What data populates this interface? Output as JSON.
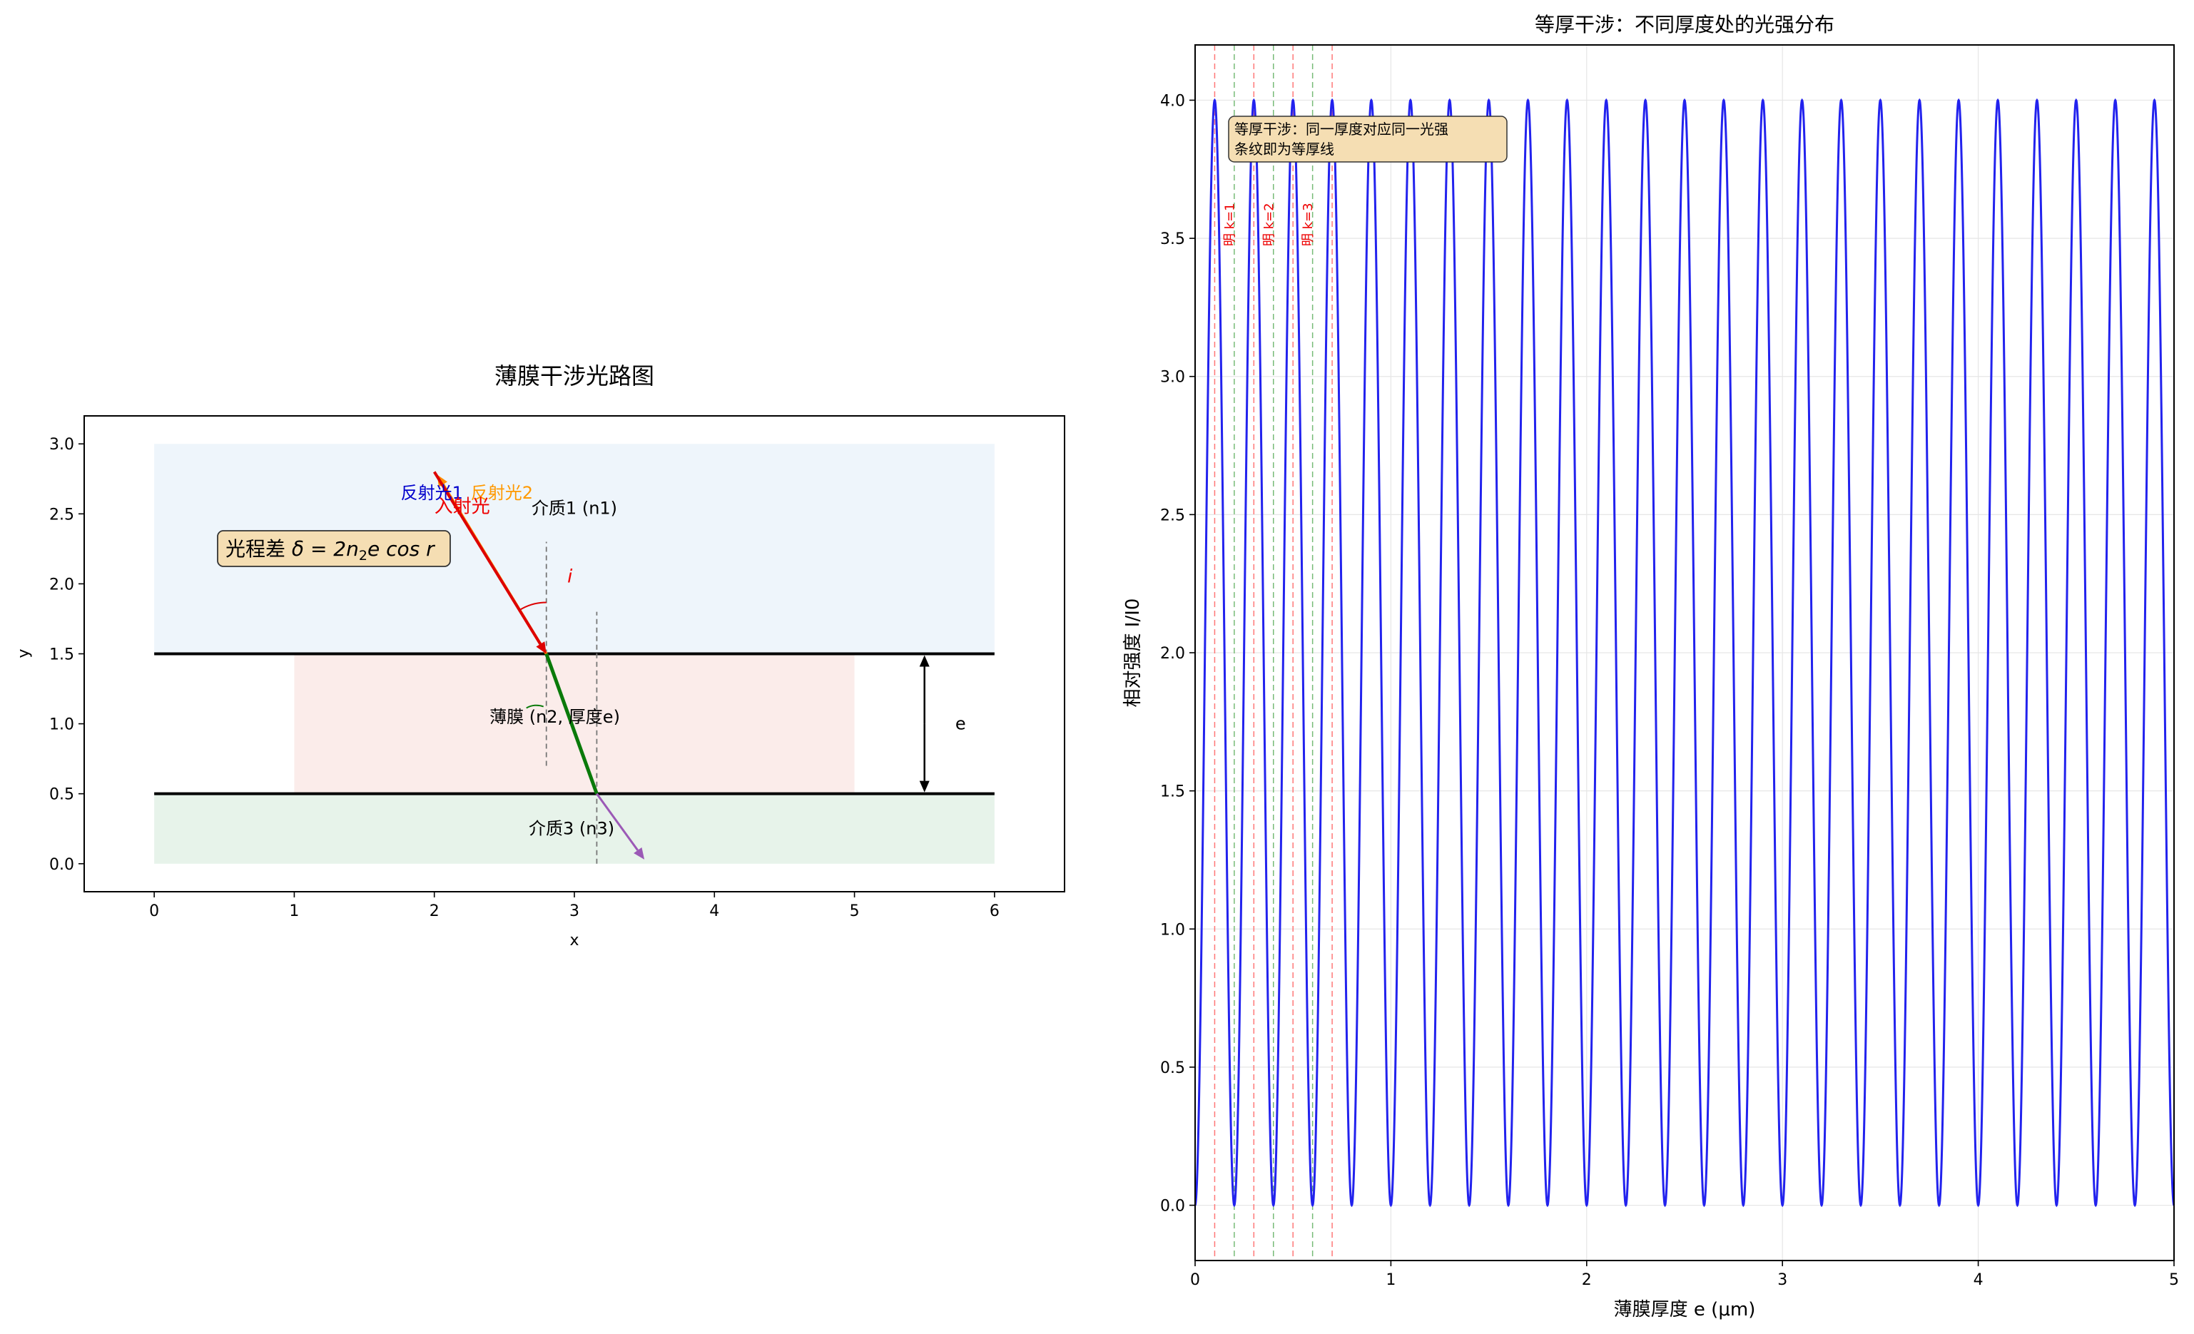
{
  "chart_data": [
    {
      "type": "diagram",
      "title": "薄膜干涉光路图",
      "xlabel": "x",
      "ylabel": "y",
      "xlim": [
        -0.5,
        6.5
      ],
      "ylim": [
        -0.2,
        3.2
      ],
      "xticks": [
        0,
        1,
        2,
        3,
        4,
        5,
        6
      ],
      "yticks": [
        0.0,
        0.5,
        1.0,
        1.5,
        2.0,
        2.5,
        3.0
      ],
      "grid": false,
      "regions": [
        {
          "name": "medium1",
          "x": [
            0,
            6
          ],
          "y": [
            1.5,
            3.0
          ],
          "color": "#eef5fb"
        },
        {
          "name": "film",
          "x": [
            1,
            5
          ],
          "y": [
            0.5,
            1.5
          ],
          "color": "#fbecea"
        },
        {
          "name": "medium3",
          "x": [
            0,
            6
          ],
          "y": [
            0.0,
            0.5
          ],
          "color": "#e7f3ea"
        }
      ],
      "interfaces": [
        1.5,
        0.5
      ],
      "rays": [
        {
          "name": "incident",
          "from": [
            2.0,
            2.8
          ],
          "to": [
            2.8,
            1.5
          ],
          "color": "#dd0000"
        },
        {
          "name": "reflected1",
          "from": [
            2.8,
            1.5
          ],
          "to": [
            2.02,
            2.78
          ],
          "color": "#ff8c00"
        },
        {
          "name": "film_path",
          "from": [
            2.8,
            1.5
          ],
          "to": [
            3.16,
            0.5
          ],
          "color": "#0a7a0a"
        },
        {
          "name": "transmitted",
          "from": [
            3.16,
            0.5
          ],
          "to": [
            3.5,
            0.03
          ],
          "color": "#9b59b6"
        }
      ],
      "normals": [
        {
          "x": 2.8,
          "y": [
            0.7,
            2.3
          ]
        },
        {
          "x": 3.16,
          "y": [
            0.0,
            1.8
          ]
        }
      ],
      "labels": {
        "reflected1": "反射光1",
        "reflected2": "反射光2",
        "incident": "入射光",
        "medium1": "介质1 (n1)",
        "film": "薄膜 (n2, 厚度e)",
        "medium3": "介质3 (n3)",
        "angle": "i",
        "thickness": "e",
        "formula_prefix": "光程差 ",
        "formula_main": "δ = 2n",
        "formula_sub": "2",
        "formula_tail": "e cos r"
      }
    },
    {
      "type": "line",
      "title": "等厚干涉：不同厚度处的光强分布",
      "xlabel": "薄膜厚度 e (μm)",
      "ylabel": "相对强度 I/I0",
      "xlim": [
        0,
        5
      ],
      "ylim": [
        -0.2,
        4.2
      ],
      "xticks": [
        0,
        1,
        2,
        3,
        4,
        5
      ],
      "yticks": [
        0.0,
        0.5,
        1.0,
        1.5,
        2.0,
        2.5,
        3.0,
        3.5,
        4.0
      ],
      "grid": true,
      "series": [
        {
          "function": "I = 4 sin^2(5π e)",
          "amplitude": 4,
          "period": 0.2,
          "x_range": [
            0,
            5
          ],
          "color": "#2222ee"
        }
      ],
      "bright_lines": [
        0.1,
        0.3,
        0.5,
        0.7
      ],
      "dark_lines": [
        0.2,
        0.4,
        0.6
      ],
      "bright_labels": [
        "明 k=1",
        "明 k=2",
        "明 k=3"
      ],
      "annotation": [
        "等厚干涉：同一厚度对应同一光强",
        "条纹即为等厚线"
      ]
    }
  ]
}
